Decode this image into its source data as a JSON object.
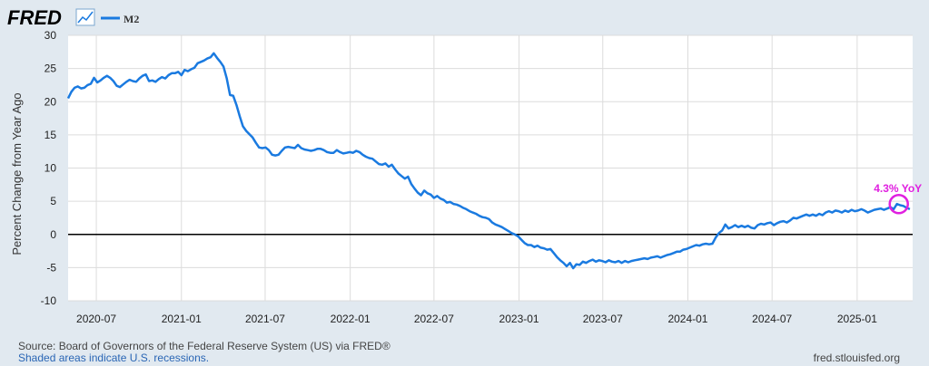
{
  "header": {
    "logo_text": "FRED",
    "logo_icon": "line-chart-icon",
    "legend": [
      {
        "name": "M2",
        "color": "#1a7ae0"
      }
    ]
  },
  "footer": {
    "source": "Source: Board of Governors of the Federal Reserve System (US) via FRED®",
    "recessions_note": "Shaded areas indicate U.S. recessions.",
    "site": "fred.stlouisfed.org"
  },
  "colors": {
    "series": "#1a7ae0",
    "annotation": "#e020e0",
    "background": "#e1e9f0",
    "plot_bg": "#ffffff",
    "zero_line": "#000000"
  },
  "chart_data": {
    "type": "line",
    "ylabel": "Percent Change from Year Ago",
    "xlabel": "",
    "ylim": [
      -10,
      30
    ],
    "yticks": [
      -10,
      -5,
      0,
      5,
      10,
      15,
      20,
      25,
      30
    ],
    "xlim": [
      "2020-05-01",
      "2025-05-01"
    ],
    "xticks": [
      "2020-07",
      "2021-01",
      "2021-07",
      "2022-01",
      "2022-07",
      "2023-01",
      "2023-07",
      "2024-01",
      "2024-07",
      "2025-01"
    ],
    "grid": true,
    "annotation": {
      "text": "4.3% YoY",
      "x": "2025-04-01",
      "y": 4.3
    },
    "series": [
      {
        "name": "M2",
        "points": [
          [
            "2020-05-01",
            20.5
          ],
          [
            "2020-05-08",
            21.5
          ],
          [
            "2020-05-15",
            22.1
          ],
          [
            "2020-05-22",
            22.3
          ],
          [
            "2020-05-29",
            22.0
          ],
          [
            "2020-06-05",
            22.1
          ],
          [
            "2020-06-12",
            22.5
          ],
          [
            "2020-06-19",
            22.7
          ],
          [
            "2020-06-26",
            23.6
          ],
          [
            "2020-07-03",
            22.9
          ],
          [
            "2020-07-10",
            23.2
          ],
          [
            "2020-07-17",
            23.6
          ],
          [
            "2020-07-24",
            23.9
          ],
          [
            "2020-07-31",
            23.6
          ],
          [
            "2020-08-07",
            23.1
          ],
          [
            "2020-08-14",
            22.4
          ],
          [
            "2020-08-21",
            22.2
          ],
          [
            "2020-08-28",
            22.6
          ],
          [
            "2020-09-04",
            23.0
          ],
          [
            "2020-09-11",
            23.3
          ],
          [
            "2020-09-18",
            23.1
          ],
          [
            "2020-09-25",
            23.0
          ],
          [
            "2020-10-02",
            23.5
          ],
          [
            "2020-10-09",
            23.9
          ],
          [
            "2020-10-16",
            24.1
          ],
          [
            "2020-10-23",
            23.1
          ],
          [
            "2020-10-30",
            23.2
          ],
          [
            "2020-11-06",
            23.0
          ],
          [
            "2020-11-13",
            23.4
          ],
          [
            "2020-11-20",
            23.7
          ],
          [
            "2020-11-27",
            23.5
          ],
          [
            "2020-12-04",
            24.0
          ],
          [
            "2020-12-11",
            24.3
          ],
          [
            "2020-12-18",
            24.3
          ],
          [
            "2020-12-25",
            24.5
          ],
          [
            "2021-01-01",
            24.0
          ],
          [
            "2021-01-08",
            24.8
          ],
          [
            "2021-01-15",
            24.6
          ],
          [
            "2021-01-22",
            24.9
          ],
          [
            "2021-01-29",
            25.1
          ],
          [
            "2021-02-05",
            25.8
          ],
          [
            "2021-02-12",
            26.0
          ],
          [
            "2021-02-19",
            26.2
          ],
          [
            "2021-02-26",
            26.5
          ],
          [
            "2021-03-05",
            26.7
          ],
          [
            "2021-03-12",
            27.3
          ],
          [
            "2021-03-19",
            26.6
          ],
          [
            "2021-03-26",
            26.0
          ],
          [
            "2021-04-02",
            25.3
          ],
          [
            "2021-04-09",
            23.5
          ],
          [
            "2021-04-16",
            21.0
          ],
          [
            "2021-04-23",
            20.9
          ],
          [
            "2021-04-30",
            19.5
          ],
          [
            "2021-05-07",
            17.8
          ],
          [
            "2021-05-14",
            16.3
          ],
          [
            "2021-05-21",
            15.6
          ],
          [
            "2021-05-28",
            15.1
          ],
          [
            "2021-06-04",
            14.6
          ],
          [
            "2021-06-11",
            13.8
          ],
          [
            "2021-06-18",
            13.1
          ],
          [
            "2021-06-25",
            13.0
          ],
          [
            "2021-07-02",
            13.1
          ],
          [
            "2021-07-09",
            12.7
          ],
          [
            "2021-07-16",
            12.0
          ],
          [
            "2021-07-23",
            11.9
          ],
          [
            "2021-07-30",
            12.0
          ],
          [
            "2021-08-06",
            12.6
          ],
          [
            "2021-08-13",
            13.1
          ],
          [
            "2021-08-20",
            13.2
          ],
          [
            "2021-08-27",
            13.1
          ],
          [
            "2021-09-03",
            13.0
          ],
          [
            "2021-09-10",
            13.5
          ],
          [
            "2021-09-17",
            13.0
          ],
          [
            "2021-09-24",
            12.8
          ],
          [
            "2021-10-01",
            12.7
          ],
          [
            "2021-10-08",
            12.6
          ],
          [
            "2021-10-15",
            12.7
          ],
          [
            "2021-10-22",
            12.9
          ],
          [
            "2021-10-29",
            12.9
          ],
          [
            "2021-11-05",
            12.7
          ],
          [
            "2021-11-12",
            12.4
          ],
          [
            "2021-11-19",
            12.3
          ],
          [
            "2021-11-26",
            12.3
          ],
          [
            "2021-12-03",
            12.7
          ],
          [
            "2021-12-10",
            12.4
          ],
          [
            "2021-12-17",
            12.2
          ],
          [
            "2021-12-24",
            12.3
          ],
          [
            "2021-12-31",
            12.4
          ],
          [
            "2022-01-07",
            12.3
          ],
          [
            "2022-01-14",
            12.6
          ],
          [
            "2022-01-21",
            12.4
          ],
          [
            "2022-01-28",
            12.0
          ],
          [
            "2022-02-04",
            11.7
          ],
          [
            "2022-02-11",
            11.5
          ],
          [
            "2022-02-18",
            11.4
          ],
          [
            "2022-02-25",
            11.0
          ],
          [
            "2022-03-04",
            10.6
          ],
          [
            "2022-03-11",
            10.5
          ],
          [
            "2022-03-18",
            10.7
          ],
          [
            "2022-03-25",
            10.2
          ],
          [
            "2022-04-01",
            10.5
          ],
          [
            "2022-04-08",
            9.8
          ],
          [
            "2022-04-15",
            9.2
          ],
          [
            "2022-04-22",
            8.8
          ],
          [
            "2022-04-29",
            8.4
          ],
          [
            "2022-05-06",
            8.7
          ],
          [
            "2022-05-13",
            7.6
          ],
          [
            "2022-05-20",
            6.9
          ],
          [
            "2022-05-27",
            6.3
          ],
          [
            "2022-06-03",
            5.9
          ],
          [
            "2022-06-10",
            6.6
          ],
          [
            "2022-06-17",
            6.2
          ],
          [
            "2022-06-24",
            6.0
          ],
          [
            "2022-07-01",
            5.5
          ],
          [
            "2022-07-08",
            5.8
          ],
          [
            "2022-07-15",
            5.4
          ],
          [
            "2022-07-22",
            5.2
          ],
          [
            "2022-07-29",
            4.8
          ],
          [
            "2022-08-05",
            4.9
          ],
          [
            "2022-08-12",
            4.6
          ],
          [
            "2022-08-19",
            4.5
          ],
          [
            "2022-08-26",
            4.3
          ],
          [
            "2022-09-02",
            4.0
          ],
          [
            "2022-09-09",
            3.8
          ],
          [
            "2022-09-16",
            3.5
          ],
          [
            "2022-09-23",
            3.3
          ],
          [
            "2022-09-30",
            3.1
          ],
          [
            "2022-10-07",
            2.8
          ],
          [
            "2022-10-14",
            2.6
          ],
          [
            "2022-10-21",
            2.5
          ],
          [
            "2022-10-28",
            2.3
          ],
          [
            "2022-11-04",
            1.8
          ],
          [
            "2022-11-11",
            1.5
          ],
          [
            "2022-11-18",
            1.3
          ],
          [
            "2022-11-25",
            1.1
          ],
          [
            "2022-12-02",
            0.8
          ],
          [
            "2022-12-09",
            0.5
          ],
          [
            "2022-12-16",
            0.2
          ],
          [
            "2022-12-23",
            0.0
          ],
          [
            "2022-12-30",
            -0.3
          ],
          [
            "2023-01-06",
            -0.8
          ],
          [
            "2023-01-13",
            -1.3
          ],
          [
            "2023-01-20",
            -1.6
          ],
          [
            "2023-01-27",
            -1.6
          ],
          [
            "2023-02-03",
            -1.9
          ],
          [
            "2023-02-10",
            -1.7
          ],
          [
            "2023-02-17",
            -2.0
          ],
          [
            "2023-02-24",
            -2.1
          ],
          [
            "2023-03-03",
            -2.3
          ],
          [
            "2023-03-10",
            -2.2
          ],
          [
            "2023-03-17",
            -2.8
          ],
          [
            "2023-03-24",
            -3.4
          ],
          [
            "2023-03-31",
            -3.9
          ],
          [
            "2023-04-07",
            -4.3
          ],
          [
            "2023-04-14",
            -4.8
          ],
          [
            "2023-04-21",
            -4.3
          ],
          [
            "2023-04-28",
            -5.1
          ],
          [
            "2023-05-05",
            -4.5
          ],
          [
            "2023-05-12",
            -4.6
          ],
          [
            "2023-05-19",
            -4.1
          ],
          [
            "2023-05-26",
            -4.3
          ],
          [
            "2023-06-02",
            -4.0
          ],
          [
            "2023-06-09",
            -3.8
          ],
          [
            "2023-06-16",
            -4.1
          ],
          [
            "2023-06-23",
            -3.9
          ],
          [
            "2023-06-30",
            -4.0
          ],
          [
            "2023-07-07",
            -4.2
          ],
          [
            "2023-07-14",
            -3.9
          ],
          [
            "2023-07-21",
            -4.1
          ],
          [
            "2023-07-28",
            -4.2
          ],
          [
            "2023-08-04",
            -4.0
          ],
          [
            "2023-08-11",
            -4.3
          ],
          [
            "2023-08-18",
            -4.0
          ],
          [
            "2023-08-25",
            -4.2
          ],
          [
            "2023-09-01",
            -4.0
          ],
          [
            "2023-09-08",
            -3.9
          ],
          [
            "2023-09-15",
            -3.8
          ],
          [
            "2023-09-22",
            -3.7
          ],
          [
            "2023-09-29",
            -3.6
          ],
          [
            "2023-10-06",
            -3.7
          ],
          [
            "2023-10-13",
            -3.5
          ],
          [
            "2023-10-20",
            -3.4
          ],
          [
            "2023-10-27",
            -3.3
          ],
          [
            "2023-11-03",
            -3.5
          ],
          [
            "2023-11-10",
            -3.3
          ],
          [
            "2023-11-17",
            -3.1
          ],
          [
            "2023-11-24",
            -3.0
          ],
          [
            "2023-12-01",
            -2.8
          ],
          [
            "2023-12-08",
            -2.6
          ],
          [
            "2023-12-15",
            -2.6
          ],
          [
            "2023-12-22",
            -2.3
          ],
          [
            "2023-12-29",
            -2.2
          ],
          [
            "2024-01-05",
            -2.0
          ],
          [
            "2024-01-12",
            -1.8
          ],
          [
            "2024-01-19",
            -1.6
          ],
          [
            "2024-01-26",
            -1.7
          ],
          [
            "2024-02-02",
            -1.5
          ],
          [
            "2024-02-09",
            -1.4
          ],
          [
            "2024-02-16",
            -1.5
          ],
          [
            "2024-02-23",
            -1.4
          ],
          [
            "2024-03-01",
            -0.5
          ],
          [
            "2024-03-08",
            0.2
          ],
          [
            "2024-03-15",
            0.6
          ],
          [
            "2024-03-22",
            1.5
          ],
          [
            "2024-03-29",
            0.9
          ],
          [
            "2024-04-05",
            1.1
          ],
          [
            "2024-04-12",
            1.4
          ],
          [
            "2024-04-19",
            1.1
          ],
          [
            "2024-04-26",
            1.3
          ],
          [
            "2024-05-03",
            1.1
          ],
          [
            "2024-05-10",
            1.3
          ],
          [
            "2024-05-17",
            1.0
          ],
          [
            "2024-05-24",
            0.9
          ],
          [
            "2024-05-31",
            1.4
          ],
          [
            "2024-06-07",
            1.6
          ],
          [
            "2024-06-14",
            1.5
          ],
          [
            "2024-06-21",
            1.7
          ],
          [
            "2024-06-28",
            1.8
          ],
          [
            "2024-07-05",
            1.4
          ],
          [
            "2024-07-12",
            1.7
          ],
          [
            "2024-07-19",
            1.9
          ],
          [
            "2024-07-26",
            2.0
          ],
          [
            "2024-08-02",
            1.8
          ],
          [
            "2024-08-09",
            2.1
          ],
          [
            "2024-08-16",
            2.5
          ],
          [
            "2024-08-23",
            2.4
          ],
          [
            "2024-08-30",
            2.6
          ],
          [
            "2024-09-06",
            2.8
          ],
          [
            "2024-09-13",
            3.0
          ],
          [
            "2024-09-20",
            2.8
          ],
          [
            "2024-09-27",
            3.0
          ],
          [
            "2024-10-04",
            2.8
          ],
          [
            "2024-10-11",
            3.1
          ],
          [
            "2024-10-18",
            2.9
          ],
          [
            "2024-10-25",
            3.3
          ],
          [
            "2024-11-01",
            3.5
          ],
          [
            "2024-11-08",
            3.3
          ],
          [
            "2024-11-15",
            3.6
          ],
          [
            "2024-11-22",
            3.5
          ],
          [
            "2024-11-29",
            3.3
          ],
          [
            "2024-12-06",
            3.6
          ],
          [
            "2024-12-13",
            3.4
          ],
          [
            "2024-12-20",
            3.7
          ],
          [
            "2024-12-27",
            3.5
          ],
          [
            "2025-01-03",
            3.6
          ],
          [
            "2025-01-10",
            3.8
          ],
          [
            "2025-01-17",
            3.6
          ],
          [
            "2025-01-24",
            3.3
          ],
          [
            "2025-01-31",
            3.5
          ],
          [
            "2025-02-07",
            3.7
          ],
          [
            "2025-02-14",
            3.8
          ],
          [
            "2025-02-21",
            3.9
          ],
          [
            "2025-02-28",
            3.7
          ],
          [
            "2025-03-07",
            3.9
          ],
          [
            "2025-03-14",
            4.1
          ],
          [
            "2025-03-21",
            3.8
          ],
          [
            "2025-03-28",
            4.6
          ],
          [
            "2025-04-04",
            4.4
          ],
          [
            "2025-04-11",
            4.3
          ],
          [
            "2025-04-18",
            4.0
          ],
          [
            "2025-04-25",
            3.8
          ]
        ]
      }
    ]
  }
}
